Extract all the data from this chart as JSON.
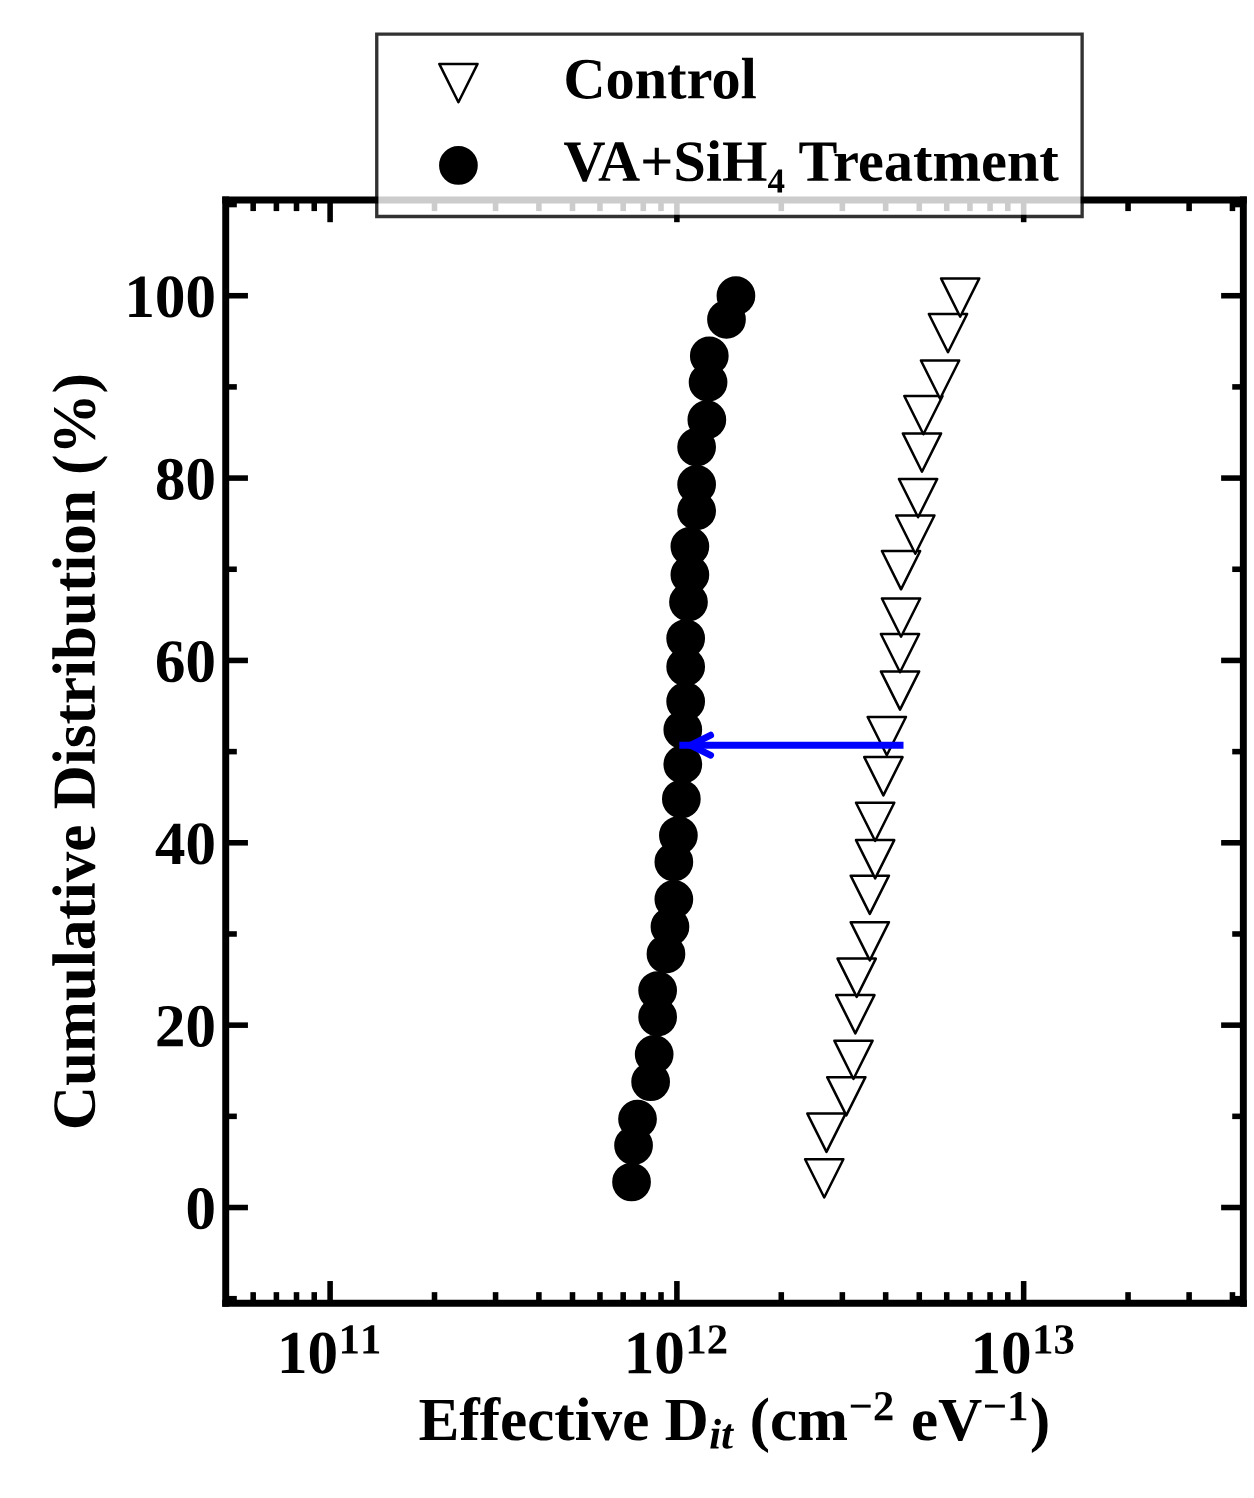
{
  "chart_data": {
    "type": "scatter",
    "xlabel": "Effective D$_{it}$ (cm$^{−2}$ eV$^{−1}$)",
    "ylabel": "Cumulative Distribution (%)",
    "log": "x",
    "xlim": [
      50000000000.0,
      43000000000000.0
    ],
    "xticks": [
      {
        "value": 100000000000.0,
        "label": "10$^{11}$"
      },
      {
        "value": 1000000000000.0,
        "label": "10$^{12}$"
      },
      {
        "value": 10000000000000.0,
        "label": "10$^{13}$"
      }
    ],
    "ylim": [
      -10.5,
      110.5
    ],
    "yticks": [
      0,
      20,
      40,
      60,
      80,
      100
    ],
    "grid": false,
    "legend": "top",
    "series": [
      {
        "name": "Control",
        "color": "#000000",
        "marker": "triangle",
        "x": [
          2660000000000.0,
          2700000000000.0,
          3080000000000.0,
          3230000000000.0,
          3270000000000.0,
          3300000000000.0,
          3600000000000.0,
          3600000000000.0,
          3730000000000.0,
          3730000000000.0,
          3940000000000.0,
          4030000000000.0,
          4400000000000.0,
          4400000000000.0,
          4430000000000.0,
          4430000000000.0,
          4870000000000.0,
          4960000000000.0,
          5090000000000.0,
          5140000000000.0,
          5740000000000.0,
          6050000000000.0,
          6560000000000.0
        ],
        "values": [
          3.2,
          8.2,
          12.2,
          16.2,
          21.2,
          25.2,
          29.2,
          34.3,
          38.2,
          42.3,
          47.3,
          51.7,
          56.7,
          60.8,
          64.7,
          69.9,
          73.8,
          77.8,
          82.8,
          86.9,
          90.8,
          95.9,
          99.8
        ]
      },
      {
        "name": "VA+SiH₄ Treatment",
        "color": "#000000",
        "marker": "circle",
        "x": [
          740000000000.0,
          750000000000.0,
          770000000000.0,
          840000000000.0,
          860000000000.0,
          880000000000.0,
          880000000000.0,
          930000000000.0,
          955000000000.0,
          980000000000.0,
          980000000000.0,
          1010000000000.0,
          1030000000000.0,
          1040000000000.0,
          1040000000000.0,
          1060000000000.0,
          1060000000000.0,
          1060000000000.0,
          1080000000000.0,
          1090000000000.0,
          1090000000000.0,
          1140000000000.0,
          1140000000000.0,
          1140000000000.0,
          1220000000000.0,
          1230000000000.0,
          1240000000000.0,
          1390000000000.0,
          1480000000000.0
        ],
        "values": [
          2.8,
          6.8,
          9.7,
          13.8,
          16.8,
          20.9,
          23.8,
          27.8,
          30.8,
          33.8,
          37.9,
          40.8,
          44.8,
          48.6,
          52.4,
          55.5,
          59.3,
          62.4,
          66.4,
          69.4,
          72.5,
          76.4,
          79.3,
          83.4,
          86.4,
          90.5,
          93.4,
          97.4,
          100
        ]
      },
      {
        "type": "line",
        "color": "#0000ff",
        "marker": "none",
        "x": [
          4400000000000.0,
          1040000000000.0
        ],
        "values": [
          50.7,
          50.7
        ]
      }
    ]
  }
}
